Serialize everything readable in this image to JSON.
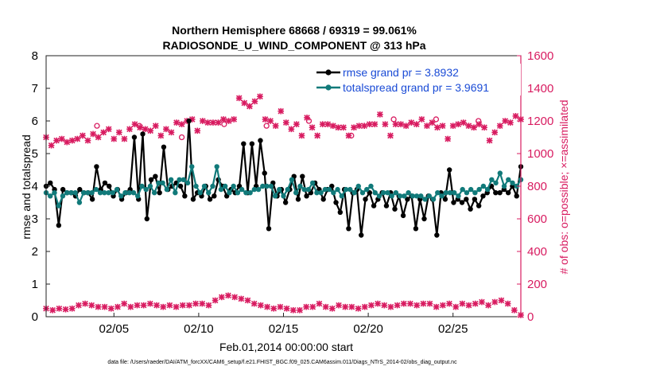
{
  "chart_data": {
    "type": "line",
    "title_line1": "Northern Hemisphere 68668 / 69319 = 99.061%",
    "title_line2": "RADIOSONDE_U_WIND_COMPONENT @ 313 hPa",
    "xlabel": "Feb.01,2014 00:00:00 start",
    "ylabel": "rmse and totalspread",
    "ylabel_right": "# of obs: o=possible; ×=assimilated",
    "footer": "data file: /Users/raeder/DAI/ATM_forcXX/CAM6_setup/f.e21.FHIST_BGC.f09_025.CAM6assim.011/Diags_NTrS_2014-02/obs_diag_output.nc",
    "x_tick_labels": [
      "02/05",
      "02/10",
      "02/15",
      "02/20",
      "02/25"
    ],
    "x_tick_values": [
      5,
      10,
      15,
      20,
      25
    ],
    "xlim": [
      1,
      29
    ],
    "ylim_left": [
      0,
      8
    ],
    "y_ticks_left": [
      "0",
      "1",
      "2",
      "3",
      "4",
      "5",
      "6",
      "7",
      "8"
    ],
    "ylim_right": [
      0,
      1600
    ],
    "y_ticks_right": [
      "0",
      "200",
      "400",
      "600",
      "800",
      "1000",
      "1200",
      "1400",
      "1600"
    ],
    "colors": {
      "rmse": "#000000",
      "spread": "#117a7a",
      "obs": "#d81b60",
      "legend_text": "#1a4bd6"
    },
    "series": [
      {
        "name": "rmse",
        "legend": "rmse grand pr = 3.8932",
        "values": [
          4.0,
          4.1,
          3.9,
          2.8,
          3.9,
          3.8,
          3.8,
          3.7,
          3.9,
          3.8,
          3.8,
          3.6,
          4.6,
          3.9,
          4.1,
          4.0,
          3.7,
          3.9,
          3.6,
          3.8,
          3.9,
          5.5,
          3.6,
          5.6,
          3.0,
          4.2,
          4.3,
          3.8,
          5.2,
          3.9,
          4.0,
          4.1,
          4.0,
          3.7,
          6.0,
          3.6,
          3.8,
          3.7,
          4.0,
          3.6,
          3.7,
          4.2,
          4.0,
          3.7,
          3.9,
          3.8,
          4.0,
          5.3,
          3.8,
          5.3,
          4.0,
          5.4,
          4.4,
          2.7,
          4.1,
          3.7,
          3.9,
          3.5,
          3.9,
          4.3,
          3.6,
          4.3,
          3.7,
          3.8,
          4.1,
          3.9,
          3.6,
          3.9,
          4.0,
          3.5,
          3.2,
          3.9,
          2.7,
          3.8,
          3.9,
          2.5,
          3.6,
          3.8,
          3.4,
          3.6,
          3.8,
          3.4,
          3.8,
          3.3,
          3.7,
          3.1,
          3.6,
          3.7,
          2.7,
          3.6,
          3.0,
          3.7,
          3.6,
          2.5,
          3.8,
          3.6,
          4.5,
          3.5,
          3.6,
          3.5,
          3.6,
          3.3,
          3.6,
          3.4,
          3.7,
          3.8,
          4.0,
          3.8,
          3.8,
          3.9,
          3.8,
          4.0,
          3.7,
          4.6
        ],
        "assimilated": [
          1100,
          1050,
          1080,
          1090,
          1070,
          1080,
          1090,
          1110,
          1080,
          1120,
          1100,
          1130,
          1150,
          1090,
          1130,
          1090,
          1150,
          1180,
          1160,
          1150,
          1140,
          1170,
          1110,
          1150,
          1130,
          1190,
          1180,
          1200,
          1210,
          1140,
          1200,
          1190,
          1190,
          1190,
          1210,
          1200,
          1210,
          1340,
          1310,
          1290,
          1320,
          1350,
          1210,
          1200,
          1170,
          1260,
          1190,
          1150,
          1180,
          1110,
          1220,
          1160,
          1110,
          1180,
          1180,
          1170,
          1160,
          1160,
          1110,
          1160,
          1170,
          1170,
          1180,
          1180,
          1240,
          1180,
          1110,
          1180,
          1180,
          1170,
          1190,
          1180,
          1210,
          1170,
          1190,
          1160,
          1170,
          1090,
          1170,
          1180,
          1190,
          1170,
          1160,
          1180,
          1160,
          1080,
          1130,
          1170,
          1200,
          1190,
          1230,
          1210
        ],
        "possible": [
          1170,
          1170,
          1100,
          1180,
          1170,
          1200,
          1110,
          1210,
          1210,
          1200
        ]
      },
      {
        "name": "totalspread",
        "legend": "totalspread grand pr = 3.9691",
        "values": [
          3.8,
          3.7,
          3.8,
          3.4,
          3.7,
          3.8,
          3.8,
          3.8,
          3.5,
          3.8,
          3.8,
          3.8,
          3.9,
          3.8,
          3.8,
          3.8,
          3.8,
          3.9,
          3.7,
          3.8,
          3.8,
          3.8,
          3.7,
          4.0,
          3.9,
          4.0,
          3.8,
          4.1,
          4.1,
          3.9,
          4.2,
          3.8,
          4.2,
          4.2,
          4.1,
          4.6,
          4.0,
          3.8,
          4.0,
          3.8,
          4.0,
          4.6,
          3.9,
          4.0,
          3.8,
          4.0,
          3.8,
          3.9,
          3.8,
          3.8,
          3.9,
          3.9,
          4.0,
          4.0,
          4.0,
          3.7,
          3.9,
          3.7,
          3.9,
          4.2,
          3.8,
          4.0,
          3.9,
          3.9,
          4.1,
          3.8,
          3.8,
          3.9,
          3.9,
          3.8,
          3.9,
          3.7,
          3.9,
          3.9,
          3.8,
          4.0,
          3.8,
          3.9,
          4.0,
          3.8,
          3.7,
          3.8,
          3.8,
          3.7,
          3.8,
          3.7,
          3.7,
          3.8,
          3.7,
          3.7,
          3.7,
          3.6,
          3.7,
          3.6,
          3.8,
          3.7,
          3.8,
          3.8,
          3.8,
          3.7,
          3.9,
          3.8,
          3.9,
          3.8,
          3.9,
          4.0,
          3.9,
          4.2,
          4.1,
          4.4,
          4.0,
          4.2,
          4.1,
          4.0,
          4.2
        ]
      },
      {
        "name": "observations",
        "values": [
          50,
          40,
          50,
          45,
          50,
          70,
          80,
          70,
          60,
          60,
          50,
          60,
          80,
          60,
          70,
          70,
          80,
          70,
          60,
          70,
          60,
          70,
          70,
          80,
          80,
          70,
          100,
          120,
          130,
          120,
          110,
          100,
          80,
          70,
          60,
          50,
          60,
          50,
          40,
          40,
          60,
          60,
          80,
          60,
          50,
          70,
          60,
          60,
          50,
          60,
          70,
          80,
          70,
          60,
          70,
          80,
          80,
          70,
          80,
          80,
          60,
          70,
          80,
          60,
          80,
          70,
          80,
          90,
          70,
          90,
          100,
          80,
          40,
          10
        ]
      }
    ]
  }
}
